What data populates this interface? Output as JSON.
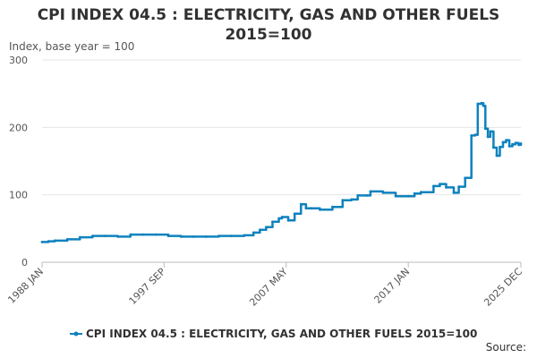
{
  "chart_data": {
    "type": "line",
    "title": "CPI INDEX 04.5 : ELECTRICITY, GAS AND OTHER FUELS 2015=100",
    "ylabel": "Index, base year = 100",
    "ylim": [
      0,
      300
    ],
    "yticks": [
      0,
      100,
      200,
      300
    ],
    "xlim": [
      1988.0,
      2025.917
    ],
    "xticks": [
      {
        "x": 1988.0,
        "label": "1988 JAN"
      },
      {
        "x": 1997.667,
        "label": "1997 SEP"
      },
      {
        "x": 2007.333,
        "label": "2007 MAY"
      },
      {
        "x": 2017.0,
        "label": "2017 JAN"
      },
      {
        "x": 2025.917,
        "label": "2025 DEC"
      }
    ],
    "legend": "bottom-center",
    "grid": true,
    "source": "Source:",
    "series": [
      {
        "name": "CPI INDEX 04.5 : ELECTRICITY, GAS AND OTHER FUELS 2015=100",
        "color": "#0f82be",
        "x": [
          1988.0,
          1988.5,
          1989.0,
          1990.0,
          1991.0,
          1992.0,
          1993.0,
          1994.0,
          1995.0,
          1996.0,
          1997.0,
          1998.0,
          1999.0,
          2000.0,
          2001.0,
          2002.0,
          2003.0,
          2004.0,
          2004.75,
          2005.25,
          2005.75,
          2006.25,
          2006.75,
          2007.0,
          2007.5,
          2008.0,
          2008.5,
          2008.9,
          2009.3,
          2010.0,
          2011.0,
          2011.8,
          2012.5,
          2013.0,
          2013.7,
          2014.0,
          2015.0,
          2016.0,
          2017.0,
          2017.5,
          2018.0,
          2019.0,
          2019.5,
          2020.0,
          2020.6,
          2021.0,
          2021.5,
          2022.0,
          2022.3,
          2022.5,
          2022.8,
          2022.95,
          2023.1,
          2023.3,
          2023.5,
          2023.75,
          2024.0,
          2024.25,
          2024.5,
          2024.75,
          2025.0,
          2025.25,
          2025.5,
          2025.75,
          2025.917
        ],
        "values": [
          30,
          31,
          32,
          34,
          37,
          39,
          39,
          38,
          41,
          41,
          41,
          39,
          38,
          38,
          38,
          39,
          39,
          40,
          44,
          48,
          52,
          60,
          65,
          67,
          62,
          72,
          86,
          80,
          80,
          78,
          82,
          92,
          93,
          99,
          99,
          105,
          103,
          98,
          98,
          102,
          104,
          113,
          116,
          111,
          103,
          112,
          125,
          188,
          189,
          235,
          236,
          232,
          198,
          186,
          194,
          170,
          158,
          171,
          178,
          181,
          172,
          175,
          177,
          174,
          176
        ]
      }
    ]
  }
}
